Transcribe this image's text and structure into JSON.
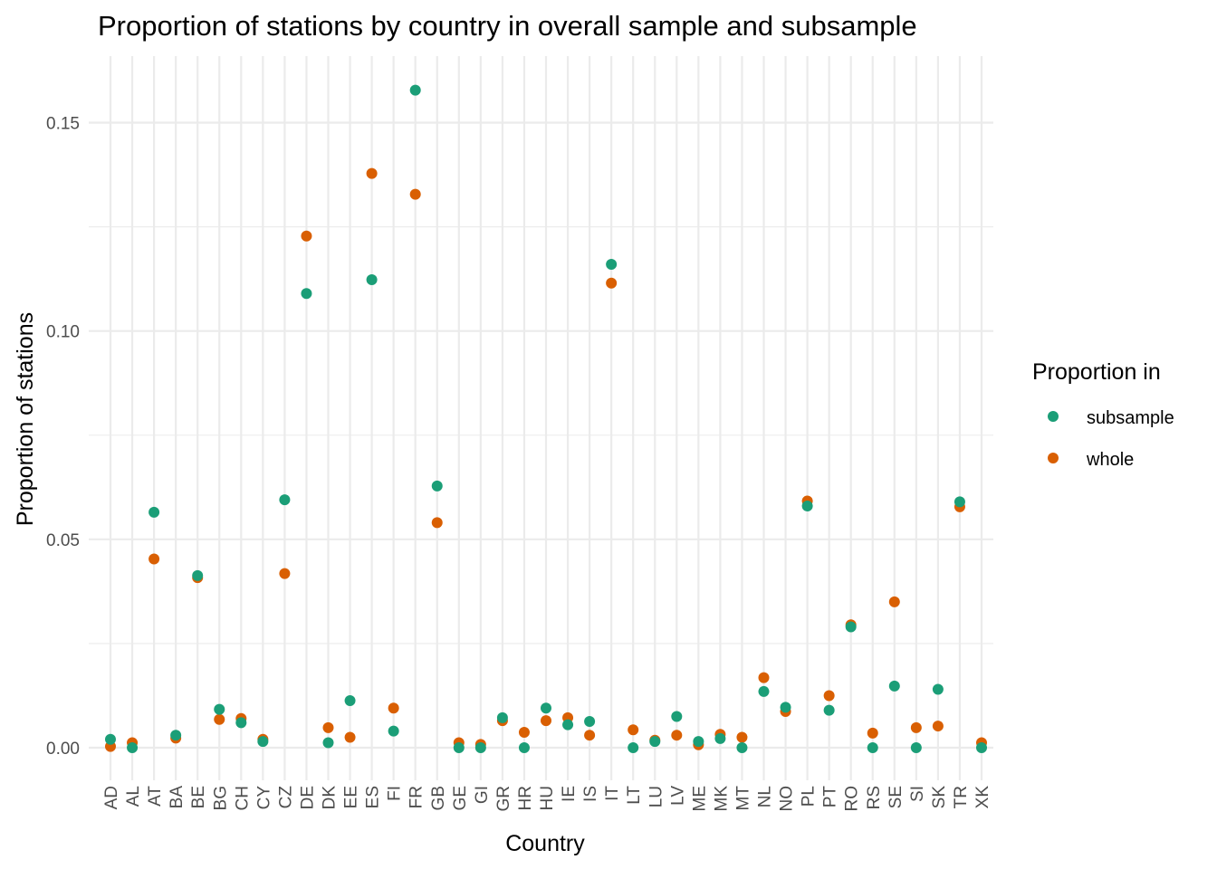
{
  "chart_data": {
    "type": "scatter",
    "title": "Proportion of stations by country in overall sample and subsample",
    "xlabel": "Country",
    "ylabel": "Proportion of stations",
    "categories": [
      "AD",
      "AL",
      "AT",
      "BA",
      "BE",
      "BG",
      "CH",
      "CY",
      "CZ",
      "DE",
      "DK",
      "EE",
      "ES",
      "FI",
      "FR",
      "GB",
      "GE",
      "GI",
      "GR",
      "HR",
      "HU",
      "IE",
      "IS",
      "IT",
      "LT",
      "LU",
      "LV",
      "ME",
      "MK",
      "MT",
      "NL",
      "NO",
      "PL",
      "PT",
      "RO",
      "RS",
      "SE",
      "SI",
      "SK",
      "TR",
      "XK"
    ],
    "ylim": [
      -0.0085,
      0.1645
    ],
    "yticks": [
      0.0,
      0.05,
      0.1,
      0.15
    ],
    "ytick_labels": [
      "0.00",
      "0.05",
      "0.10",
      "0.15"
    ],
    "grid": true,
    "legend": {
      "title": "Proportion in",
      "position": "right"
    },
    "series": [
      {
        "name": "subsample",
        "color": "#1b9e77",
        "values": [
          0.002,
          0.0,
          0.0565,
          0.003,
          0.0413,
          0.0092,
          0.006,
          0.0015,
          0.0595,
          0.109,
          0.0012,
          0.0113,
          0.1123,
          0.004,
          0.1578,
          0.0628,
          0.0,
          0.0,
          0.0072,
          0.0,
          0.0095,
          0.0055,
          0.0063,
          0.116,
          0.0,
          0.0015,
          0.0075,
          0.0015,
          0.0022,
          0.0,
          0.0135,
          0.0097,
          0.058,
          0.009,
          0.029,
          0.0,
          0.0148,
          0.0,
          0.014,
          0.059,
          0.0
        ]
      },
      {
        "name": "whole",
        "color": "#d95f02",
        "values": [
          0.0003,
          0.0012,
          0.0453,
          0.0023,
          0.0408,
          0.0068,
          0.007,
          0.002,
          0.0418,
          0.1228,
          0.0048,
          0.0025,
          0.1378,
          0.0095,
          0.1328,
          0.054,
          0.0012,
          0.0008,
          0.0065,
          0.0037,
          0.0065,
          0.0072,
          0.003,
          0.1115,
          0.0043,
          0.0018,
          0.003,
          0.0007,
          0.0032,
          0.0025,
          0.0168,
          0.0087,
          0.0592,
          0.0125,
          0.0295,
          0.0035,
          0.035,
          0.0048,
          0.0052,
          0.0578,
          0.0012
        ]
      }
    ]
  }
}
